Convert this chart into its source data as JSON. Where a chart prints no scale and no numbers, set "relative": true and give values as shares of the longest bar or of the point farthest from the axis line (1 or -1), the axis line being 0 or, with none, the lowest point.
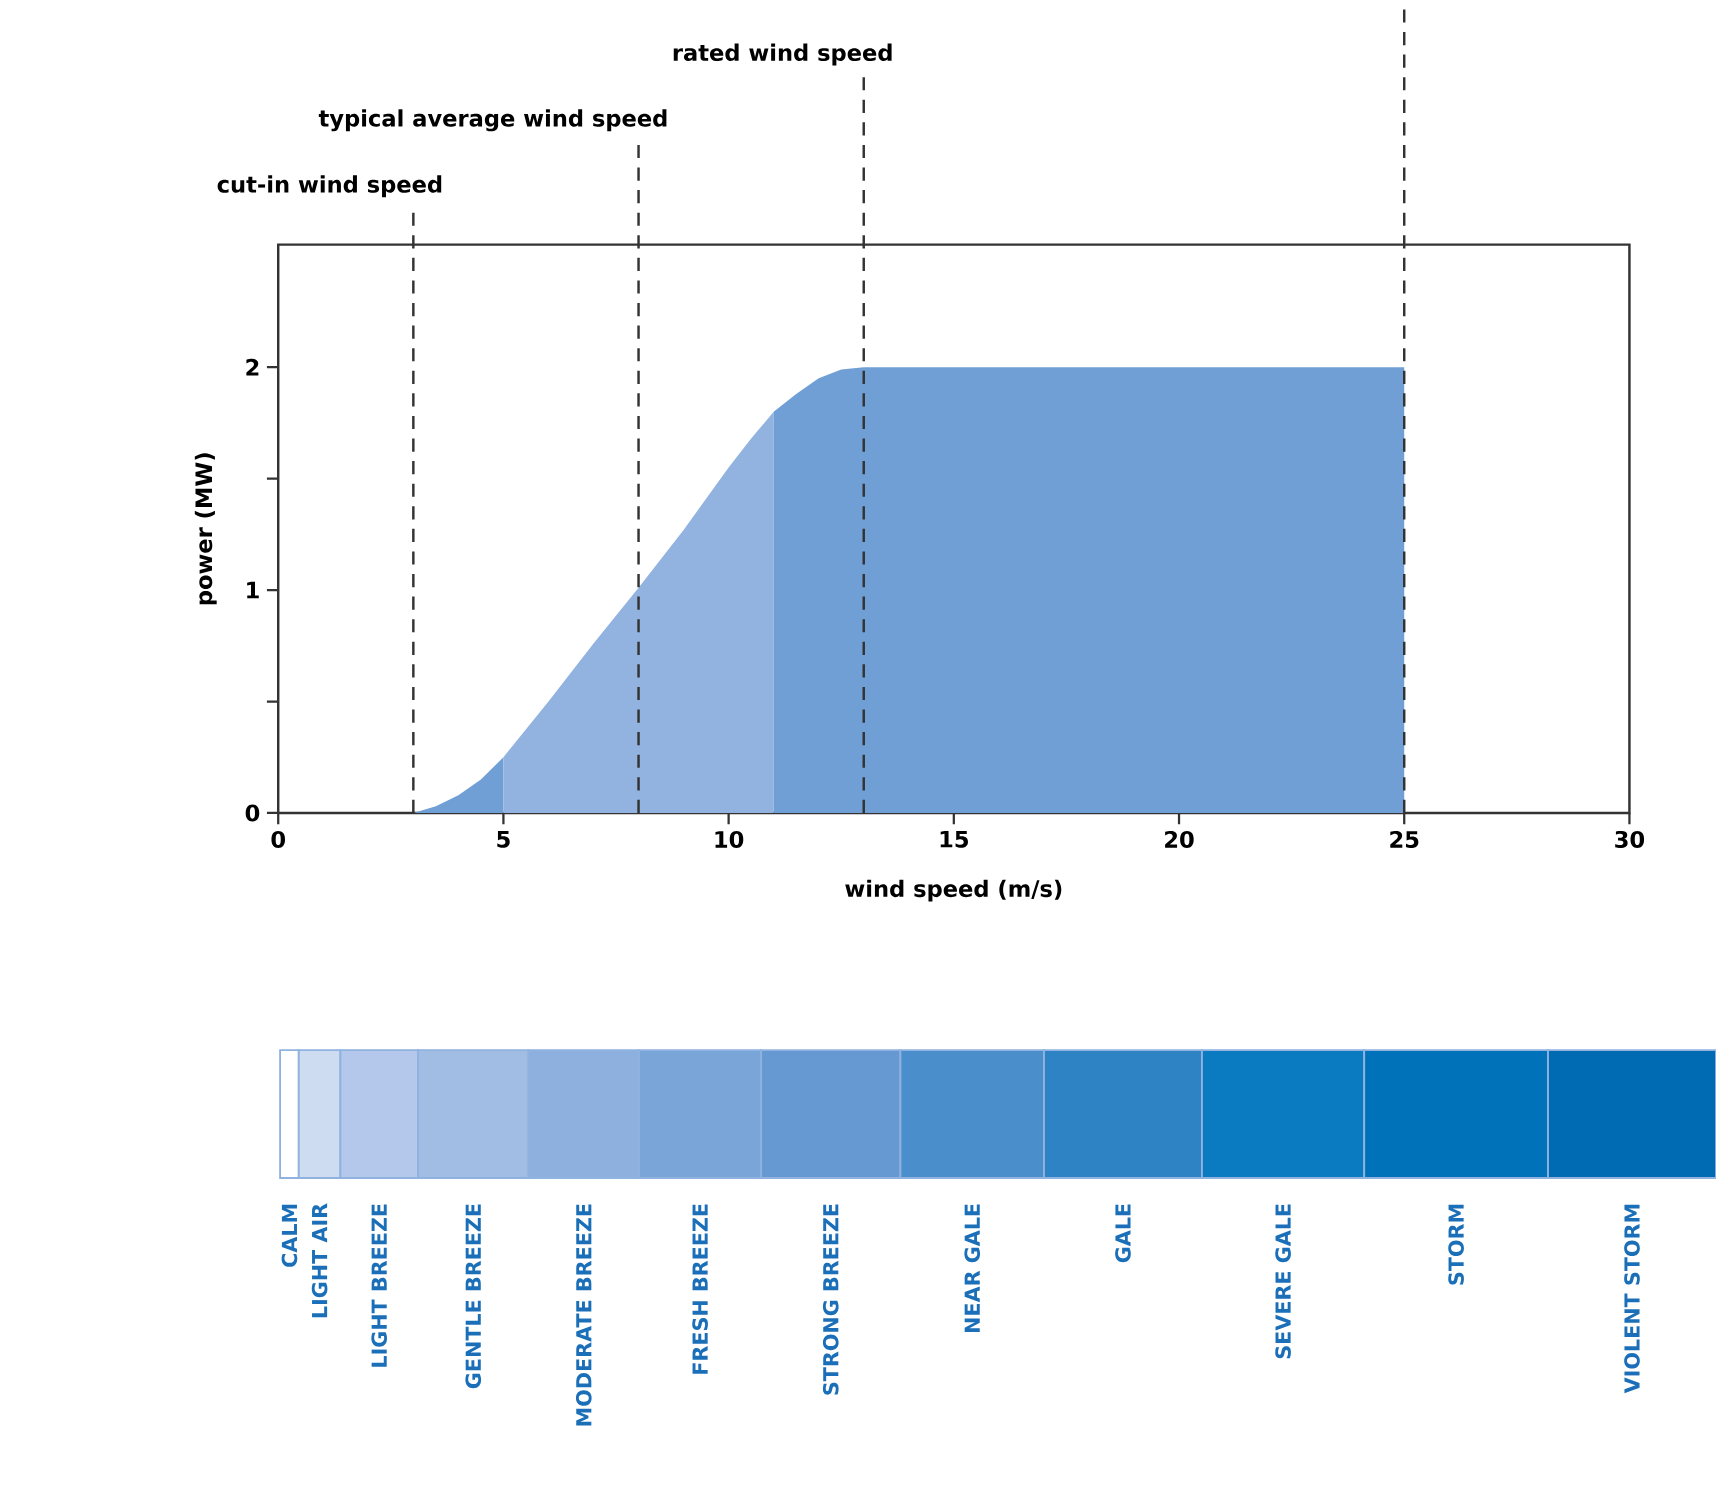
{
  "chart_data": [
    {
      "type": "area",
      "xlabel": "wind speed (m/s)",
      "ylabel": "power (MW)",
      "xlim": [
        0,
        30
      ],
      "ylim": [
        0,
        2.55
      ],
      "xticks": [
        0,
        5,
        10,
        15,
        20,
        25,
        30
      ],
      "yticks": [
        0,
        {
          "value": 0.5,
          "label": null
        },
        1,
        {
          "value": 1.5,
          "label": null
        },
        2
      ],
      "series": [
        {
          "color": "#6f9fd5",
          "x": [
            3,
            3.5,
            4,
            4.5,
            5
          ],
          "values": [
            0,
            0.03,
            0.08,
            0.15,
            0.25
          ]
        },
        {
          "color": "#92b3e0",
          "x": [
            5,
            6,
            7,
            8,
            9,
            10,
            10.5,
            11
          ],
          "values": [
            0.25,
            0.5,
            0.76,
            1.01,
            1.27,
            1.55,
            1.68,
            1.8
          ]
        },
        {
          "color": "#6f9fd5",
          "x": [
            11,
            11.5,
            12,
            12.5,
            13,
            25
          ],
          "values": [
            1.8,
            1.88,
            1.95,
            1.99,
            2,
            2
          ]
        }
      ],
      "ref_lines": [
        {
          "axis": "x",
          "value": 3,
          "label": "cut-in wind speed",
          "line_style": "dashed",
          "color": "#333333"
        },
        {
          "axis": "x",
          "value": 8,
          "label": "typical average wind speed",
          "line_style": "dashed",
          "color": "#333333"
        },
        {
          "axis": "x",
          "value": 13,
          "label": "rated wind speed",
          "line_style": "dashed",
          "color": "#333333"
        },
        {
          "axis": "x",
          "value": 25,
          "label": null,
          "line_style": "dashed",
          "color": "#333333"
        }
      ]
    },
    {
      "type": "bar",
      "stacked": true,
      "orientation": "horizontal",
      "relative": true,
      "categories": [
        null
      ],
      "series": [
        {
          "name": "CALM",
          "color": "#ffffff",
          "values": [
            0.013
          ]
        },
        {
          "name": "LIGHT AIR",
          "color": "#cddcf0",
          "values": [
            0.029
          ]
        },
        {
          "name": "LIGHT BREEZE",
          "color": "#b3c8ea",
          "values": [
            0.054
          ]
        },
        {
          "name": "GENTLE BREEZE",
          "color": "#a2bde4",
          "values": [
            0.077
          ]
        },
        {
          "name": "MODERATE BREEZE",
          "color": "#8eb0de",
          "values": [
            0.077
          ]
        },
        {
          "name": "FRESH BREEZE",
          "color": "#79a5d8",
          "values": [
            0.085
          ]
        },
        {
          "name": "STRONG BREEZE",
          "color": "#6699d2",
          "values": [
            0.097
          ]
        },
        {
          "name": "NEAR GALE",
          "color": "#4b8ecc",
          "values": [
            0.1
          ]
        },
        {
          "name": "GALE",
          "color": "#2e83c5",
          "values": [
            0.11
          ]
        },
        {
          "name": "SEVERE GALE",
          "color": "#0a7bc0",
          "values": [
            0.113
          ]
        },
        {
          "name": "STORM",
          "color": "#0072ba",
          "values": [
            0.128
          ]
        },
        {
          "name": "VIOLENT STORM",
          "color": "#006bb2",
          "values": [
            0.117
          ]
        }
      ]
    }
  ]
}
